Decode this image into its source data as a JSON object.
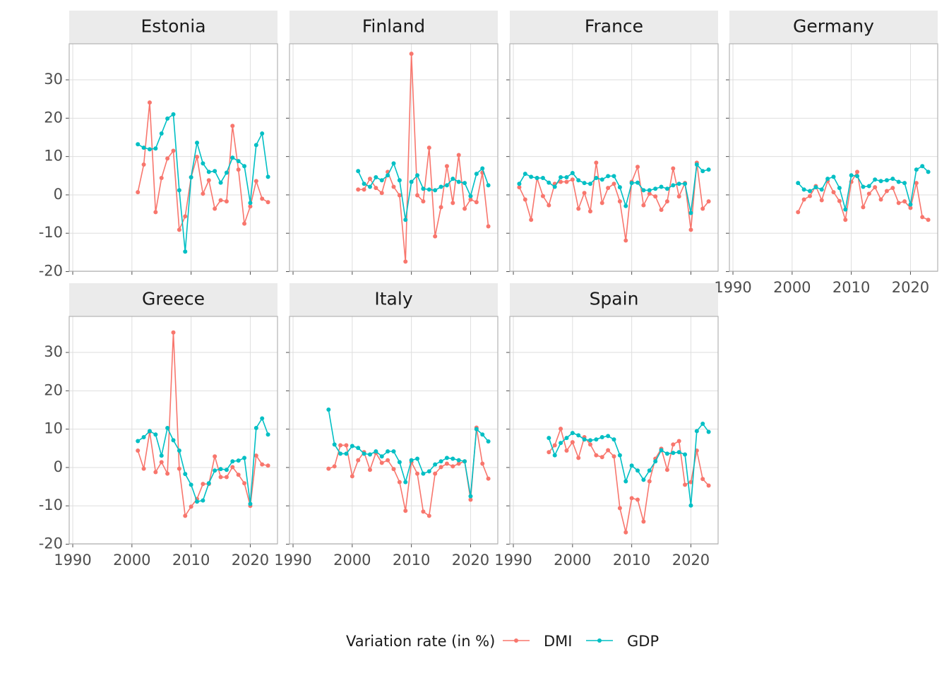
{
  "legend": {
    "title": "Variation rate (in %)"
  },
  "chart_data": [
    {
      "type": "line",
      "title": "Estonia",
      "xlim": [
        1989.4,
        2024.6
      ],
      "ylim": [
        -19.9,
        39.4
      ],
      "xticks": [
        1990,
        2000,
        2010,
        2020
      ],
      "yticks": [
        -20,
        -10,
        0,
        10,
        20,
        30
      ],
      "grid": true,
      "x": [
        2001,
        2002,
        2003,
        2004,
        2005,
        2006,
        2007,
        2008,
        2009,
        2010,
        2011,
        2012,
        2013,
        2014,
        2015,
        2016,
        2017,
        2018,
        2019,
        2020,
        2021,
        2022,
        2023
      ],
      "series": [
        {
          "name": "DMI",
          "color": "#F8766D",
          "values": [
            0.7,
            7.9,
            24.1,
            -4.5,
            4.4,
            9.5,
            11.5,
            -9.1,
            -5.6,
            4.6,
            9.9,
            0.3,
            3.8,
            -3.6,
            -1.4,
            -1.7,
            18.0,
            6.6,
            -7.5,
            -3.0,
            3.6,
            -1.0,
            -1.9
          ]
        },
        {
          "name": "GDP",
          "color": "#00BFC4",
          "values": [
            13.2,
            12.3,
            11.9,
            12.1,
            16.0,
            19.9,
            21.0,
            1.2,
            -14.8,
            4.6,
            13.6,
            8.2,
            6.0,
            6.2,
            3.2,
            5.8,
            9.7,
            8.8,
            7.5,
            -2.1,
            13.0,
            16.0,
            4.7
          ]
        }
      ]
    },
    {
      "type": "line",
      "title": "Finland",
      "xlim": [
        1989.4,
        2024.6
      ],
      "ylim": [
        -19.9,
        39.4
      ],
      "xticks": [
        1990,
        2000,
        2010,
        2020
      ],
      "yticks": [
        -20,
        -10,
        0,
        10,
        20,
        30
      ],
      "grid": true,
      "x": [
        2001,
        2002,
        2003,
        2004,
        2005,
        2006,
        2007,
        2008,
        2009,
        2010,
        2011,
        2012,
        2013,
        2014,
        2015,
        2016,
        2017,
        2018,
        2019,
        2020,
        2021,
        2022,
        2023
      ],
      "series": [
        {
          "name": "DMI",
          "color": "#F8766D",
          "values": [
            1.4,
            1.4,
            4.2,
            1.8,
            0.5,
            6.0,
            2.1,
            -0.1,
            -17.4,
            36.8,
            -0.1,
            -1.7,
            12.3,
            -10.8,
            -3.2,
            7.5,
            -2.1,
            10.4,
            -3.6,
            -1.2,
            -1.9,
            5.8,
            -8.2
          ]
        },
        {
          "name": "GDP",
          "color": "#00BFC4",
          "values": [
            6.2,
            2.9,
            2.1,
            4.6,
            3.8,
            5.1,
            8.2,
            3.8,
            -6.5,
            3.4,
            5.1,
            1.6,
            1.4,
            1.2,
            2.1,
            2.5,
            4.2,
            3.4,
            3.1,
            -0.3,
            5.5,
            6.9,
            2.5
          ]
        }
      ]
    },
    {
      "type": "line",
      "title": "France",
      "xlim": [
        1989.4,
        2024.6
      ],
      "ylim": [
        -19.9,
        39.4
      ],
      "xticks": [
        1990,
        2000,
        2010,
        2020
      ],
      "yticks": [
        -20,
        -10,
        0,
        10,
        20,
        30
      ],
      "grid": true,
      "x": [
        1991,
        1992,
        1993,
        1994,
        1995,
        1996,
        1997,
        1998,
        1999,
        2000,
        2001,
        2002,
        2003,
        2004,
        2005,
        2006,
        2007,
        2008,
        2009,
        2010,
        2011,
        2012,
        2013,
        2014,
        2015,
        2016,
        2017,
        2018,
        2019,
        2020,
        2021,
        2022,
        2023
      ],
      "series": [
        {
          "name": "DMI",
          "color": "#F8766D",
          "values": [
            2.0,
            -1.2,
            -6.5,
            4.4,
            -0.3,
            -2.7,
            2.9,
            3.4,
            3.4,
            4.0,
            -3.6,
            0.5,
            -4.3,
            8.4,
            -2.1,
            1.8,
            2.9,
            -1.7,
            -11.9,
            3.4,
            7.3,
            -2.7,
            0.3,
            -0.4,
            -3.9,
            -1.7,
            6.9,
            -0.4,
            3.1,
            -9.1,
            8.4,
            -3.6,
            -1.7
          ]
        },
        {
          "name": "GDP",
          "color": "#00BFC4",
          "values": [
            2.9,
            5.5,
            4.7,
            4.4,
            4.4,
            3.2,
            2.1,
            4.6,
            4.6,
            5.7,
            3.8,
            3.1,
            2.9,
            4.4,
            4.0,
            4.9,
            4.9,
            2.0,
            -2.9,
            3.1,
            3.2,
            1.2,
            1.2,
            1.6,
            2.1,
            1.6,
            2.5,
            2.9,
            2.9,
            -4.7,
            7.9,
            6.2,
            6.6
          ]
        }
      ]
    },
    {
      "type": "line",
      "title": "Germany",
      "xlim": [
        1989.4,
        2024.6
      ],
      "ylim": [
        -19.9,
        39.4
      ],
      "xticks": [
        1990,
        2000,
        2010,
        2020
      ],
      "yticks": [
        -20,
        -10,
        0,
        10,
        20,
        30
      ],
      "grid": true,
      "x": [
        2001,
        2002,
        2003,
        2004,
        2005,
        2006,
        2007,
        2008,
        2009,
        2010,
        2011,
        2012,
        2013,
        2014,
        2015,
        2016,
        2017,
        2018,
        2019,
        2020,
        2021,
        2022,
        2023
      ],
      "series": [
        {
          "name": "DMI",
          "color": "#F8766D",
          "values": [
            -4.5,
            -1.2,
            -0.3,
            2.3,
            -1.4,
            3.6,
            0.7,
            -1.6,
            -6.5,
            3.4,
            6.0,
            -3.2,
            0.3,
            2.0,
            -1.2,
            1.0,
            1.8,
            -2.1,
            -1.7,
            -3.4,
            3.1,
            -5.8,
            -6.5
          ]
        },
        {
          "name": "GDP",
          "color": "#00BFC4",
          "values": [
            3.1,
            1.4,
            1.0,
            2.0,
            1.4,
            4.2,
            4.7,
            1.8,
            -3.8,
            5.1,
            4.9,
            2.1,
            2.3,
            4.0,
            3.6,
            3.8,
            4.2,
            3.4,
            3.1,
            -2.5,
            6.6,
            7.5,
            6.0
          ]
        }
      ]
    },
    {
      "type": "line",
      "title": "Greece",
      "xlim": [
        1989.4,
        2024.6
      ],
      "ylim": [
        -19.9,
        39.4
      ],
      "xticks": [
        1990,
        2000,
        2010,
        2020
      ],
      "yticks": [
        -20,
        -10,
        0,
        10,
        20,
        30
      ],
      "grid": true,
      "x": [
        2001,
        2002,
        2003,
        2004,
        2005,
        2006,
        2007,
        2008,
        2009,
        2010,
        2011,
        2012,
        2013,
        2014,
        2015,
        2016,
        2017,
        2018,
        2019,
        2020,
        2021,
        2022,
        2023
      ],
      "series": [
        {
          "name": "DMI",
          "color": "#F8766D",
          "values": [
            4.4,
            -0.3,
            9.3,
            -1.2,
            1.4,
            -1.6,
            35.2,
            -0.3,
            -12.6,
            -10.2,
            -8.2,
            -4.3,
            -4.3,
            2.9,
            -2.5,
            -2.5,
            0.1,
            -1.9,
            -4.1,
            -10.0,
            3.1,
            0.8,
            0.5
          ]
        },
        {
          "name": "GDP",
          "color": "#00BFC4",
          "values": [
            6.9,
            7.9,
            9.5,
            8.6,
            3.1,
            10.3,
            7.1,
            4.4,
            -1.7,
            -4.5,
            -8.9,
            -8.6,
            -4.1,
            -0.8,
            -0.4,
            -0.6,
            1.6,
            1.8,
            2.5,
            -9.5,
            10.3,
            12.8,
            8.6
          ]
        }
      ]
    },
    {
      "type": "line",
      "title": "Italy",
      "xlim": [
        1989.4,
        2024.6
      ],
      "ylim": [
        -19.9,
        39.4
      ],
      "xticks": [
        1990,
        2000,
        2010,
        2020
      ],
      "yticks": [
        -20,
        -10,
        0,
        10,
        20,
        30
      ],
      "grid": true,
      "x": [
        1996,
        1997,
        1998,
        1999,
        2000,
        2001,
        2002,
        2003,
        2004,
        2005,
        2006,
        2007,
        2008,
        2009,
        2010,
        2011,
        2012,
        2013,
        2014,
        2015,
        2016,
        2017,
        2018,
        2019,
        2020,
        2021,
        2022,
        2023
      ],
      "series": [
        {
          "name": "DMI",
          "color": "#F8766D",
          "values": [
            -0.3,
            0.3,
            5.8,
            5.8,
            -2.3,
            1.9,
            4.0,
            -0.6,
            3.8,
            1.2,
            1.9,
            -0.4,
            -3.8,
            -11.3,
            1.4,
            -1.6,
            -11.5,
            -12.6,
            -1.6,
            0.1,
            1.0,
            0.3,
            1.0,
            1.6,
            -8.4,
            10.4,
            1.0,
            -2.9
          ]
        },
        {
          "name": "GDP",
          "color": "#00BFC4",
          "values": [
            15.1,
            6.0,
            3.6,
            3.6,
            5.6,
            5.1,
            3.6,
            3.4,
            4.2,
            2.9,
            4.2,
            4.2,
            1.4,
            -3.8,
            1.9,
            2.3,
            -1.6,
            -1.0,
            0.8,
            1.6,
            2.5,
            2.3,
            1.9,
            1.6,
            -7.5,
            10.0,
            8.6,
            6.8
          ]
        }
      ]
    },
    {
      "type": "line",
      "title": "Spain",
      "xlim": [
        1989.4,
        2024.6
      ],
      "ylim": [
        -19.9,
        39.4
      ],
      "xticks": [
        1990,
        2000,
        2010,
        2020
      ],
      "yticks": [
        -20,
        -10,
        0,
        10,
        20,
        30
      ],
      "grid": true,
      "x": [
        1996,
        1997,
        1998,
        1999,
        2000,
        2001,
        2002,
        2003,
        2004,
        2005,
        2006,
        2007,
        2008,
        2009,
        2010,
        2011,
        2012,
        2013,
        2014,
        2015,
        2016,
        2017,
        2018,
        2019,
        2020,
        2021,
        2022,
        2023
      ],
      "series": [
        {
          "name": "DMI",
          "color": "#F8766D",
          "values": [
            4.0,
            5.8,
            10.1,
            4.4,
            6.6,
            2.5,
            7.9,
            6.0,
            3.2,
            2.7,
            4.5,
            2.9,
            -10.6,
            -16.9,
            -8.0,
            -8.4,
            -14.1,
            -3.6,
            2.3,
            4.9,
            -0.6,
            6.0,
            6.9,
            -4.5,
            -3.8,
            4.4,
            -3.0,
            -4.7
          ]
        },
        {
          "name": "GDP",
          "color": "#00BFC4",
          "values": [
            7.7,
            3.2,
            6.4,
            7.7,
            9.0,
            8.4,
            7.3,
            7.1,
            7.3,
            7.9,
            8.2,
            7.3,
            3.2,
            -3.6,
            0.5,
            -0.8,
            -3.2,
            -0.8,
            1.6,
            4.5,
            3.6,
            3.8,
            4.0,
            3.4,
            -9.9,
            9.5,
            11.4,
            9.3
          ]
        }
      ]
    }
  ]
}
